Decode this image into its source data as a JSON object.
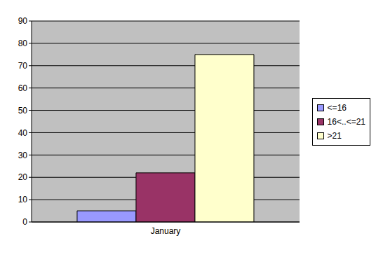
{
  "chart_data": {
    "type": "bar",
    "categories": [
      "January"
    ],
    "series": [
      {
        "name": "<=16",
        "color": "#9999ff",
        "values": [
          5
        ]
      },
      {
        "name": "16<..<=21",
        "color": "#993366",
        "values": [
          22
        ]
      },
      {
        "name": ">21",
        "color": "#ffffcc",
        "values": [
          75
        ]
      }
    ],
    "ylim": [
      0,
      90
    ],
    "yticks": [
      0,
      10,
      20,
      30,
      40,
      50,
      60,
      70,
      80,
      90
    ],
    "grid": true,
    "legend": "right"
  }
}
